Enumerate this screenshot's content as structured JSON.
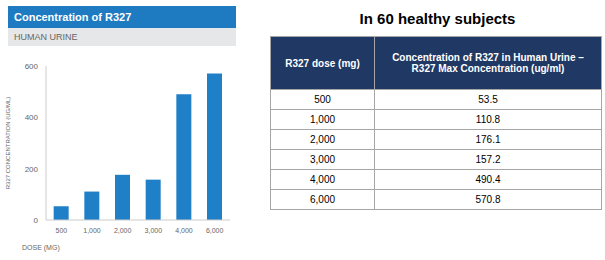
{
  "chart_data": {
    "type": "bar",
    "title": "Concentration of R327",
    "subtitle": "HUMAN URINE",
    "x_label": "DOSE (MG)",
    "y_label": "R327 CONCENTRATION (UG/ML)",
    "categories": [
      "500",
      "1,000",
      "2,000",
      "3,000",
      "4,000",
      "6,000"
    ],
    "values": [
      53.5,
      110.8,
      176.1,
      157.2,
      490.4,
      570.8
    ],
    "color": "#1f7fc7",
    "ylim": [
      0,
      600
    ],
    "yticks": [
      0,
      200,
      400,
      600
    ],
    "grid": false
  },
  "table": {
    "title": "In 60 healthy subjects",
    "header": [
      "R327 dose (mg)",
      "Concentration of R327 in Human Urine – R327 Max Concentration (ug/ml)"
    ],
    "rows": [
      [
        "500",
        "53.5"
      ],
      [
        "1,000",
        "110.8"
      ],
      [
        "2,000",
        "176.1"
      ],
      [
        "3,000",
        "157.2"
      ],
      [
        "4,000",
        "490.4"
      ],
      [
        "6,000",
        "570.8"
      ]
    ]
  }
}
